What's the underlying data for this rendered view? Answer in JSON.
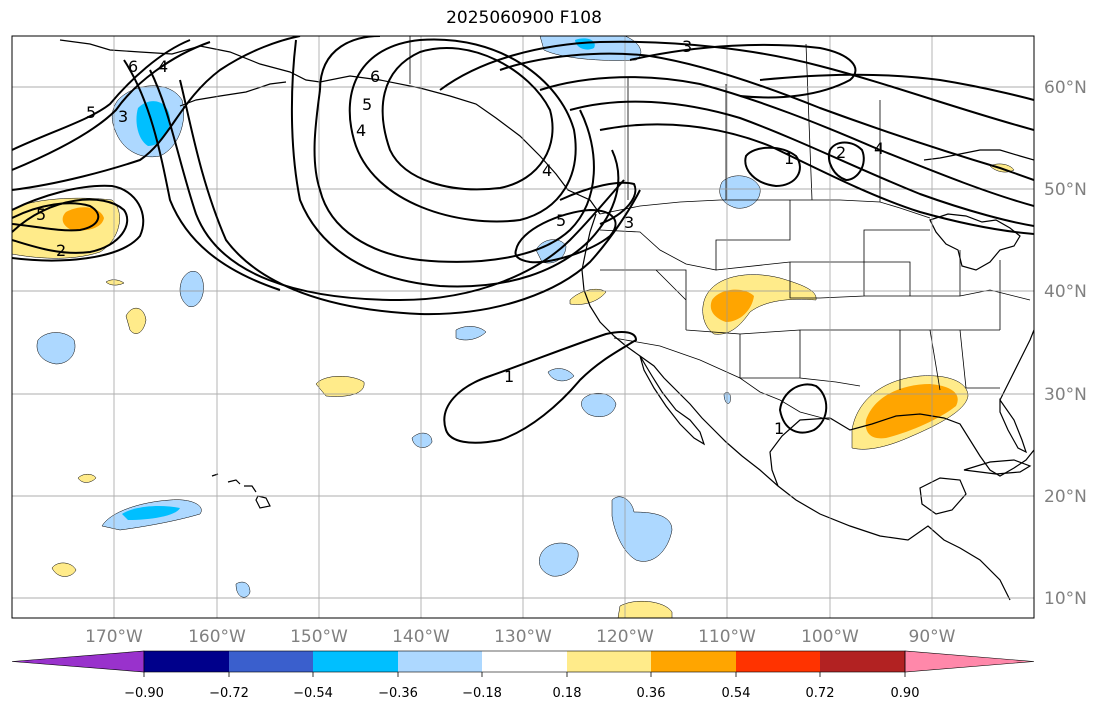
{
  "title": "2025060900 F108",
  "colors": {
    "neg_090": "#9932cc",
    "neg_072": "#00008b",
    "neg_054": "#3a5fcd",
    "neg_036": "#00bfff",
    "neg_018": "#add8ff",
    "neutral": "#ffffff",
    "pos_018": "#ffeb8a",
    "pos_036": "#ffa500",
    "pos_054": "#ff3300",
    "pos_072": "#b22222",
    "pos_090": "#ff88aa"
  },
  "axes": {
    "lat_labels": [
      "60°N",
      "50°N",
      "40°N",
      "30°N",
      "20°N",
      "10°N"
    ],
    "lon_labels": [
      "170°W",
      "160°W",
      "150°W",
      "140°W",
      "130°W",
      "120°W",
      "110°W",
      "100°W",
      "90°W"
    ]
  },
  "colorbar": {
    "ticks": [
      "−0.90",
      "−0.72",
      "−0.54",
      "−0.36",
      "−0.18",
      "0.18",
      "0.36",
      "0.54",
      "0.72",
      "0.90"
    ]
  },
  "contour_labels": [
    "6",
    "5",
    "4",
    "3",
    "5",
    "2",
    "6",
    "5",
    "4",
    "3",
    "3",
    "5",
    "4",
    "1",
    "2",
    "4",
    "1",
    "1"
  ]
}
